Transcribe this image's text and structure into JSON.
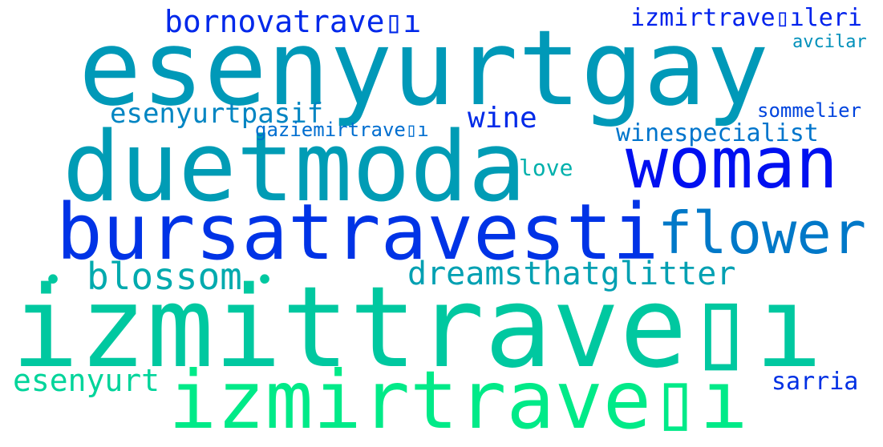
{
  "words": [
    {
      "text": "esenyurtgay",
      "color": "#0099b8"
    },
    {
      "text": "duetmoda",
      "color": "#009cb5"
    },
    {
      "text": "woman",
      "color": "#0010f0"
    },
    {
      "text": "bursatravesti",
      "color": "#0033e6"
    },
    {
      "text": "flower",
      "color": "#0078c8"
    },
    {
      "text": "izmittrave▯ı",
      "color": "#00c8a0"
    },
    {
      "text": "izmirtrave▯ı",
      "color": "#00ea88"
    },
    {
      "text": "bornovatrave▯ı",
      "color": "#0028ea"
    },
    {
      "text": "izmirtrave▯ıleri",
      "color": "#0022ec"
    },
    {
      "text": "avcilar",
      "color": "#0090ba"
    },
    {
      "text": "esenyurtpasif",
      "color": "#0085c2"
    },
    {
      "text": "wine",
      "color": "#002ae8"
    },
    {
      "text": "sommelier",
      "color": "#0044de"
    },
    {
      "text": "gaziemirtrave▯ı",
      "color": "#006ed0"
    },
    {
      "text": "winespecialist",
      "color": "#0075cc"
    },
    {
      "text": "love",
      "color": "#00b0ac"
    },
    {
      "text": "blossom",
      "color": "#00aaae"
    },
    {
      "text": "dreamsthatglitter",
      "color": "#00a0b2"
    },
    {
      "text": "•",
      "color": "#00c8a0"
    },
    {
      "text": "•",
      "color": "#00c8a0"
    },
    {
      "text": "esenyurt",
      "color": "#00d49a"
    },
    {
      "text": "sarria",
      "color": "#0030e4"
    }
  ]
}
